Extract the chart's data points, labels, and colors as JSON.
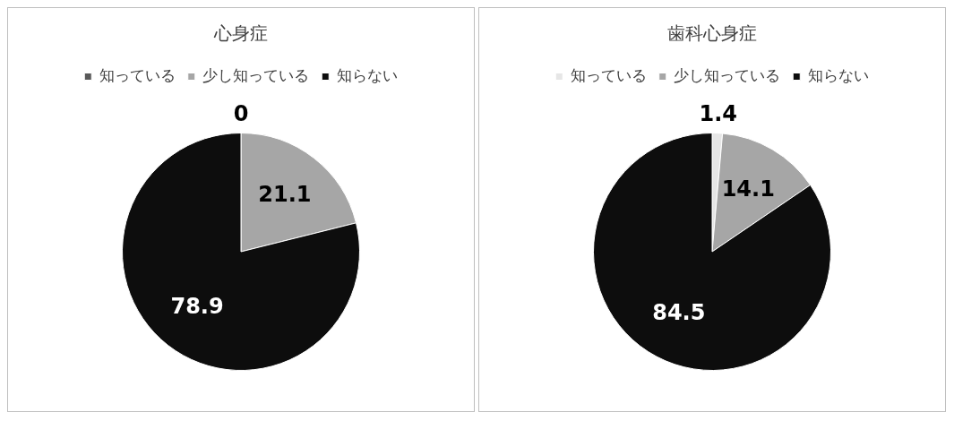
{
  "chart_data": [
    {
      "type": "pie",
      "title": "心身症",
      "categories": [
        "知っている",
        "少し知っている",
        "知らない"
      ],
      "values": [
        0,
        21.1,
        78.9
      ],
      "value_labels": [
        "0",
        "21.1",
        "78.9"
      ],
      "colors": [
        "#595959",
        "#a6a6a6",
        "#0d0d0d"
      ],
      "legend": "top"
    },
    {
      "type": "pie",
      "title": "歯科心身症",
      "categories": [
        "知っている",
        "少し知っている",
        "知らない"
      ],
      "values": [
        1.4,
        14.1,
        84.5
      ],
      "value_labels": [
        "1.4",
        "14.1",
        "84.5"
      ],
      "colors": [
        "#e6e6e6",
        "#a6a6a6",
        "#0d0d0d"
      ],
      "legend": "top"
    }
  ]
}
